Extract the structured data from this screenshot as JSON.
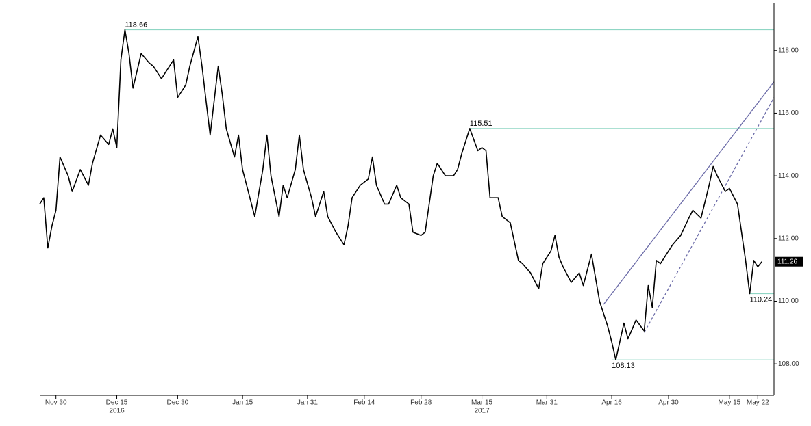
{
  "chart_data": {
    "type": "line",
    "color": "#000000",
    "x": [
      "2016-11-26",
      "2016-11-27",
      "2016-11-28",
      "2016-11-29",
      "2016-11-30",
      "2016-12-01",
      "2016-12-03",
      "2016-12-04",
      "2016-12-06",
      "2016-12-08",
      "2016-12-09",
      "2016-12-11",
      "2016-12-13",
      "2016-12-14",
      "2016-12-15",
      "2016-12-16",
      "2016-12-17",
      "2016-12-18",
      "2016-12-19",
      "2016-12-21",
      "2016-12-23",
      "2016-12-24",
      "2016-12-26",
      "2016-12-28",
      "2016-12-29",
      "2016-12-30",
      "2017-01-01",
      "2017-01-02",
      "2017-01-04",
      "2017-01-05",
      "2017-01-06",
      "2017-01-07",
      "2017-01-09",
      "2017-01-10",
      "2017-01-11",
      "2017-01-13",
      "2017-01-14",
      "2017-01-15",
      "2017-01-16",
      "2017-01-18",
      "2017-01-20",
      "2017-01-21",
      "2017-01-22",
      "2017-01-24",
      "2017-01-25",
      "2017-01-26",
      "2017-01-28",
      "2017-01-29",
      "2017-01-30",
      "2017-02-01",
      "2017-02-02",
      "2017-02-04",
      "2017-02-05",
      "2017-02-07",
      "2017-02-09",
      "2017-02-10",
      "2017-02-11",
      "2017-02-13",
      "2017-02-15",
      "2017-02-16",
      "2017-02-17",
      "2017-02-19",
      "2017-02-20",
      "2017-02-22",
      "2017-02-23",
      "2017-02-25",
      "2017-02-26",
      "2017-02-28",
      "2017-03-01",
      "2017-03-03",
      "2017-03-04",
      "2017-03-06",
      "2017-03-08",
      "2017-03-09",
      "2017-03-10",
      "2017-03-12",
      "2017-03-14",
      "2017-03-15",
      "2017-03-16",
      "2017-03-17",
      "2017-03-19",
      "2017-03-20",
      "2017-03-22",
      "2017-03-24",
      "2017-03-25",
      "2017-03-27",
      "2017-03-29",
      "2017-03-30",
      "2017-04-01",
      "2017-04-02",
      "2017-04-03",
      "2017-04-04",
      "2017-04-06",
      "2017-04-08",
      "2017-04-09",
      "2017-04-11",
      "2017-04-13",
      "2017-04-15",
      "2017-04-16",
      "2017-04-17",
      "2017-04-19",
      "2017-04-20",
      "2017-04-22",
      "2017-04-24",
      "2017-04-25",
      "2017-04-26",
      "2017-04-27",
      "2017-04-28",
      "2017-04-30",
      "2017-05-01",
      "2017-05-03",
      "2017-05-05",
      "2017-05-06",
      "2017-05-08",
      "2017-05-10",
      "2017-05-11",
      "2017-05-12",
      "2017-05-14",
      "2017-05-15",
      "2017-05-17",
      "2017-05-18",
      "2017-05-19",
      "2017-05-20",
      "2017-05-21",
      "2017-05-22",
      "2017-05-23"
    ],
    "values": [
      113.1,
      113.3,
      111.7,
      112.4,
      112.9,
      114.6,
      114.0,
      113.5,
      114.2,
      113.7,
      114.4,
      115.3,
      115.0,
      115.5,
      114.9,
      117.7,
      118.66,
      117.9,
      116.8,
      117.9,
      117.6,
      117.5,
      117.1,
      117.5,
      117.7,
      116.5,
      116.9,
      117.5,
      118.44,
      117.5,
      116.4,
      115.3,
      117.5,
      116.6,
      115.5,
      114.6,
      115.3,
      114.2,
      113.7,
      112.7,
      114.2,
      115.3,
      114.0,
      112.7,
      113.7,
      113.3,
      114.2,
      115.3,
      114.2,
      113.3,
      112.7,
      113.5,
      112.7,
      112.2,
      111.8,
      112.4,
      113.3,
      113.7,
      113.9,
      114.6,
      113.7,
      113.1,
      113.1,
      113.7,
      113.3,
      113.1,
      112.2,
      112.1,
      112.2,
      114.0,
      114.4,
      114.0,
      114.0,
      114.2,
      114.7,
      115.51,
      114.8,
      114.9,
      114.8,
      113.3,
      113.3,
      112.7,
      112.5,
      111.3,
      111.2,
      110.9,
      110.4,
      111.2,
      111.6,
      112.1,
      111.4,
      111.1,
      110.6,
      110.9,
      110.5,
      111.5,
      110.0,
      109.2,
      108.7,
      108.13,
      109.3,
      108.8,
      109.4,
      109.05,
      110.5,
      109.8,
      111.3,
      111.2,
      111.6,
      111.8,
      112.1,
      112.65,
      112.9,
      112.65,
      113.7,
      114.3,
      114.0,
      113.5,
      113.6,
      113.1,
      112.2,
      111.3,
      110.24,
      111.3,
      111.1,
      111.26
    ],
    "xlim": [
      "2016-11-26",
      "2017-05-26"
    ],
    "xticks": [
      {
        "value": "2016-11-30",
        "label": "Nov 30"
      },
      {
        "value": "2016-12-15",
        "label": "Dec 15"
      },
      {
        "value": "2016-12-30",
        "label": "Dec 30"
      },
      {
        "value": "2017-01-15",
        "label": "Jan 15"
      },
      {
        "value": "2017-01-31",
        "label": "Jan 31"
      },
      {
        "value": "2017-02-14",
        "label": "Feb 14"
      },
      {
        "value": "2017-02-28",
        "label": "Feb 28"
      },
      {
        "value": "2017-03-15",
        "label": "Mar 15"
      },
      {
        "value": "2017-03-31",
        "label": "Mar 31"
      },
      {
        "value": "2017-04-16",
        "label": "Apr 16"
      },
      {
        "value": "2017-04-30",
        "label": "Apr 30"
      },
      {
        "value": "2017-05-15",
        "label": "May 15"
      },
      {
        "value": "2017-05-22",
        "label": "May 22"
      }
    ],
    "x_year_labels": [
      {
        "value": "2016-12-15",
        "label": "2016"
      },
      {
        "value": "2017-03-15",
        "label": "2017"
      }
    ],
    "ylim": [
      107,
      119.5
    ],
    "yticks": [
      {
        "value": 108,
        "label": "108.00"
      },
      {
        "value": 110,
        "label": "110.00"
      },
      {
        "value": 112,
        "label": "112.00"
      },
      {
        "value": 114,
        "label": "114.00"
      },
      {
        "value": 116,
        "label": "116.00"
      },
      {
        "value": 118,
        "label": "118.00"
      }
    ],
    "levels": [
      {
        "value": 118.66,
        "from": "2016-12-17",
        "label_side": "above"
      },
      {
        "value": 115.51,
        "from": "2017-03-12",
        "label_side": "above"
      },
      {
        "value": 108.13,
        "from": "2017-04-16",
        "label_side": "below"
      },
      {
        "value": 110.24,
        "from": "2017-05-20",
        "label_side": "below"
      }
    ],
    "level_color": "#8fd6c4",
    "trendlines": [
      {
        "from": [
          "2017-04-14",
          109.9
        ],
        "to": [
          "2017-05-26",
          117.0
        ],
        "dashed": false
      },
      {
        "from": [
          "2017-04-24",
          109.0
        ],
        "to": [
          "2017-05-26",
          116.5
        ],
        "dashed": true
      }
    ],
    "trend_color": "#6b6ba8"
  }
}
